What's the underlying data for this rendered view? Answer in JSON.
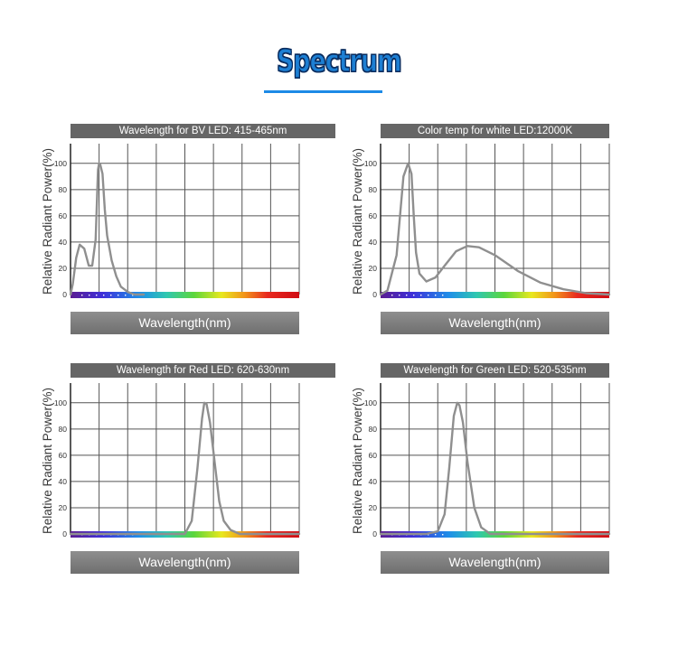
{
  "page": {
    "title": "Spectrum"
  },
  "chart_data": [
    {
      "type": "line",
      "title": "Wavelength for BV LED: 415-465nm",
      "xlabel": "Wavelength(nm)",
      "ylabel": "Relative Radiant Power(%)",
      "ylim": [
        0,
        115
      ],
      "yticks": [
        0,
        20,
        40,
        60,
        80,
        100
      ],
      "grid": true,
      "x": [
        0,
        0.01,
        0.025,
        0.04,
        0.06,
        0.08,
        0.095,
        0.11,
        0.12,
        0.125,
        0.13,
        0.14,
        0.15,
        0.16,
        0.18,
        0.2,
        0.22,
        0.25,
        0.28,
        0.32
      ],
      "y": [
        0,
        8,
        28,
        38,
        35,
        22,
        22,
        42,
        95,
        100,
        99,
        92,
        65,
        45,
        26,
        14,
        6,
        2,
        0,
        0
      ]
    },
    {
      "type": "line",
      "title": "Color temp for white LED:12000K",
      "xlabel": "Wavelength(nm)",
      "ylabel": "Relative Radiant Power(%)",
      "ylim": [
        0,
        115
      ],
      "yticks": [
        0,
        20,
        40,
        60,
        80,
        100
      ],
      "grid": true,
      "x": [
        0,
        0.03,
        0.07,
        0.1,
        0.12,
        0.135,
        0.145,
        0.155,
        0.17,
        0.2,
        0.24,
        0.28,
        0.33,
        0.38,
        0.43,
        0.5,
        0.6,
        0.7,
        0.8,
        0.9,
        1.0
      ],
      "y": [
        0,
        3,
        30,
        90,
        100,
        92,
        60,
        32,
        16,
        10,
        13,
        22,
        33,
        37,
        36,
        30,
        18,
        9,
        4,
        1,
        0
      ]
    },
    {
      "type": "line",
      "title": "Wavelength for Red LED:  620-630nm",
      "xlabel": "Wavelength(nm)",
      "ylabel": "Relative Radiant Power(%)",
      "ylim": [
        0,
        115
      ],
      "yticks": [
        0,
        20,
        40,
        60,
        80,
        100
      ],
      "grid": true,
      "x": [
        0,
        0.45,
        0.5,
        0.53,
        0.555,
        0.575,
        0.585,
        0.595,
        0.61,
        0.63,
        0.65,
        0.67,
        0.7,
        0.74,
        1.0
      ],
      "y": [
        0,
        0,
        0,
        10,
        50,
        88,
        100,
        99,
        85,
        55,
        25,
        10,
        3,
        0,
        0
      ]
    },
    {
      "type": "line",
      "title": "Wavelength for Green LED: 520-535nm",
      "xlabel": "Wavelength(nm)",
      "ylabel": "Relative Radiant Power(%)",
      "ylim": [
        0,
        115
      ],
      "yticks": [
        0,
        20,
        40,
        60,
        80,
        100
      ],
      "grid": true,
      "x": [
        0,
        0.2,
        0.25,
        0.28,
        0.3,
        0.32,
        0.335,
        0.345,
        0.36,
        0.38,
        0.41,
        0.44,
        0.48,
        1.0
      ],
      "y": [
        0,
        0,
        2,
        15,
        50,
        90,
        100,
        98,
        85,
        55,
        20,
        5,
        0,
        0
      ]
    }
  ]
}
